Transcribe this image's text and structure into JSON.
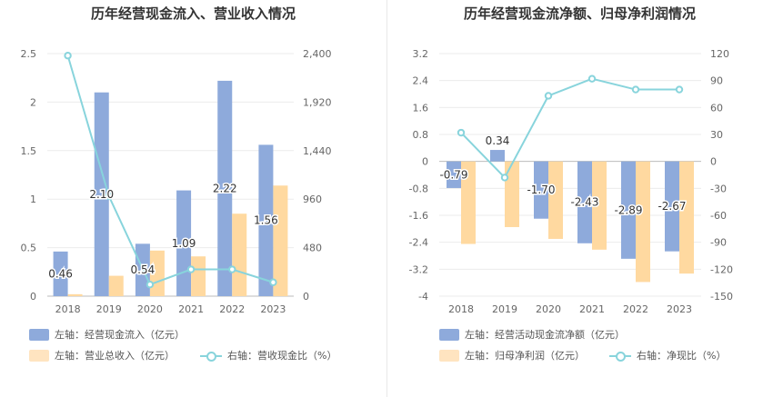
{
  "chart_data": [
    {
      "type": "bar",
      "title": "历年经营现金流入、营业收入情况",
      "categories": [
        "2018",
        "2019",
        "2020",
        "2021",
        "2022",
        "2023"
      ],
      "y_left": {
        "ylim": [
          0,
          2.5
        ],
        "ticks": [
          "0",
          "0.5",
          "1",
          "1.5",
          "2",
          "2.5"
        ]
      },
      "y_right": {
        "ylim": [
          0,
          2400
        ],
        "ticks": [
          "0",
          "480",
          "960",
          "1,440",
          "1,920",
          "2,400"
        ]
      },
      "series": [
        {
          "name": "左轴：经营现金流入（亿元）",
          "kind": "bar",
          "axis": "left",
          "color": "#8eaadb",
          "values": [
            0.46,
            2.1,
            0.54,
            1.09,
            2.22,
            1.56
          ],
          "labels": [
            "0.46",
            "2.10",
            "0.54",
            "1.09",
            "2.22",
            "1.56"
          ]
        },
        {
          "name": "左轴：营业总收入（亿元）",
          "kind": "bar",
          "axis": "left",
          "color": "#ffd9a0",
          "values": [
            0.02,
            0.21,
            0.47,
            0.41,
            0.85,
            1.14
          ]
        },
        {
          "name": "右轴：营收现金比（%）",
          "kind": "line",
          "axis": "right",
          "color": "#88d4dc",
          "values": [
            2380,
            990,
            115,
            265,
            265,
            137
          ]
        }
      ]
    },
    {
      "type": "bar",
      "title": "历年经营现金流净额、归母净利润情况",
      "categories": [
        "2018",
        "2019",
        "2020",
        "2021",
        "2022",
        "2023"
      ],
      "y_left": {
        "ylim": [
          -4,
          3.2
        ],
        "ticks": [
          "-4",
          "-3.2",
          "-2.4",
          "-1.6",
          "-0.8",
          "0",
          "0.8",
          "1.6",
          "2.4",
          "3.2"
        ]
      },
      "y_right": {
        "ylim": [
          -150,
          120
        ],
        "ticks": [
          "-150",
          "-120",
          "-90",
          "-60",
          "-30",
          "0",
          "30",
          "60",
          "90",
          "120"
        ]
      },
      "series": [
        {
          "name": "左轴：经营活动现金流净额（亿元）",
          "kind": "bar",
          "axis": "left",
          "color": "#8eaadb",
          "values": [
            -0.79,
            0.34,
            -1.7,
            -2.43,
            -2.89,
            -2.67
          ],
          "labels": [
            "-0.79",
            "0.34",
            "-1.70",
            "-2.43",
            "-2.89",
            "-2.67"
          ]
        },
        {
          "name": "左轴：归母净利润（亿元）",
          "kind": "bar",
          "axis": "left",
          "color": "#ffd9a0",
          "values": [
            -2.45,
            -1.95,
            -2.3,
            -2.62,
            -3.58,
            -3.33
          ]
        },
        {
          "name": "右轴：净现比（%）",
          "kind": "line",
          "axis": "right",
          "color": "#88d4dc",
          "values": [
            32,
            -18,
            73,
            92,
            80,
            80
          ]
        }
      ]
    }
  ]
}
